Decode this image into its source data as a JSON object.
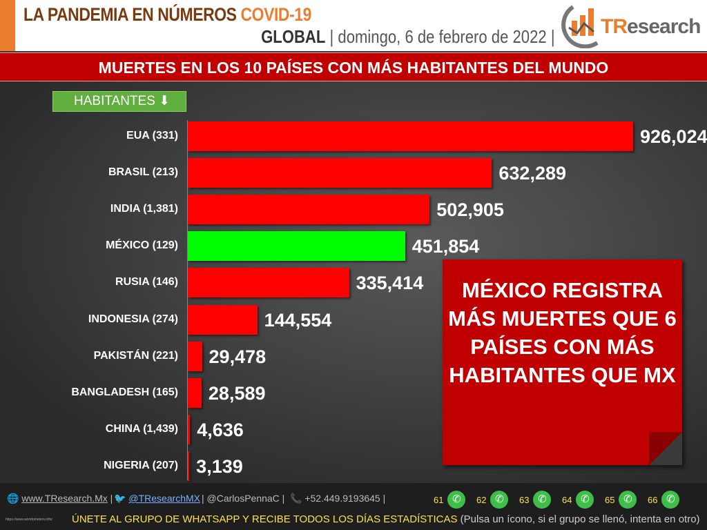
{
  "header": {
    "title": "LA PANDEMIA EN NÚMEROS",
    "title_accent": "COVID-19",
    "scope": "GLOBAL",
    "date": "domingo, 6 de febrero de 2022",
    "logo": "TResearch"
  },
  "banner": "MUERTES EN LOS 10 PAÍSES CON MÁS HABITANTES DEL MUNDO",
  "sort_button": "HABITANTES",
  "chart_data": {
    "type": "bar",
    "orientation": "horizontal",
    "title": "MUERTES EN LOS 10 PAÍSES CON MÁS HABITANTES DEL MUNDO",
    "categories": [
      "EUA (331)",
      "BRASIL (213)",
      "INDIA (1,381)",
      "MÉXICO (129)",
      "RUSIA (146)",
      "INDONESIA (274)",
      "PAKISTÁN (221)",
      "BANGLADESH (165)",
      "CHINA (1,439)",
      "NIGERIA (207)"
    ],
    "values": [
      926024,
      632289,
      502905,
      451854,
      335414,
      144554,
      29478,
      28589,
      4636,
      3139
    ],
    "labels": [
      "926,024",
      "632,289",
      "502,905",
      "451,854",
      "335,414",
      "144,554",
      "29,478",
      "28,589",
      "4,636",
      "3,139"
    ],
    "highlight": "MÉXICO (129)",
    "bar_color": "#ff0000",
    "highlight_color": "#00ff00"
  },
  "note": "MÉXICO REGISTRA MÁS MUERTES QUE 6 PAÍSES CON MÁS HABITANTES QUE MX",
  "footer": {
    "web": "www.TResearch.Mx",
    "twitter": "@TResearchMX",
    "twitter2": "@CarlosPennaC",
    "phone": "+52.449.9193645",
    "groups": [
      "61",
      "62",
      "63",
      "64",
      "65",
      "66"
    ],
    "join": "ÚNETE AL GRUPO DE WHATSAPP Y RECIBE TODOS LOS DÍAS ESTADÍSTICAS",
    "join_note": "(Pulsa un ícono, si el grupo se llenó, intenta en otro)",
    "source": "https://www.worldometers.info/"
  }
}
